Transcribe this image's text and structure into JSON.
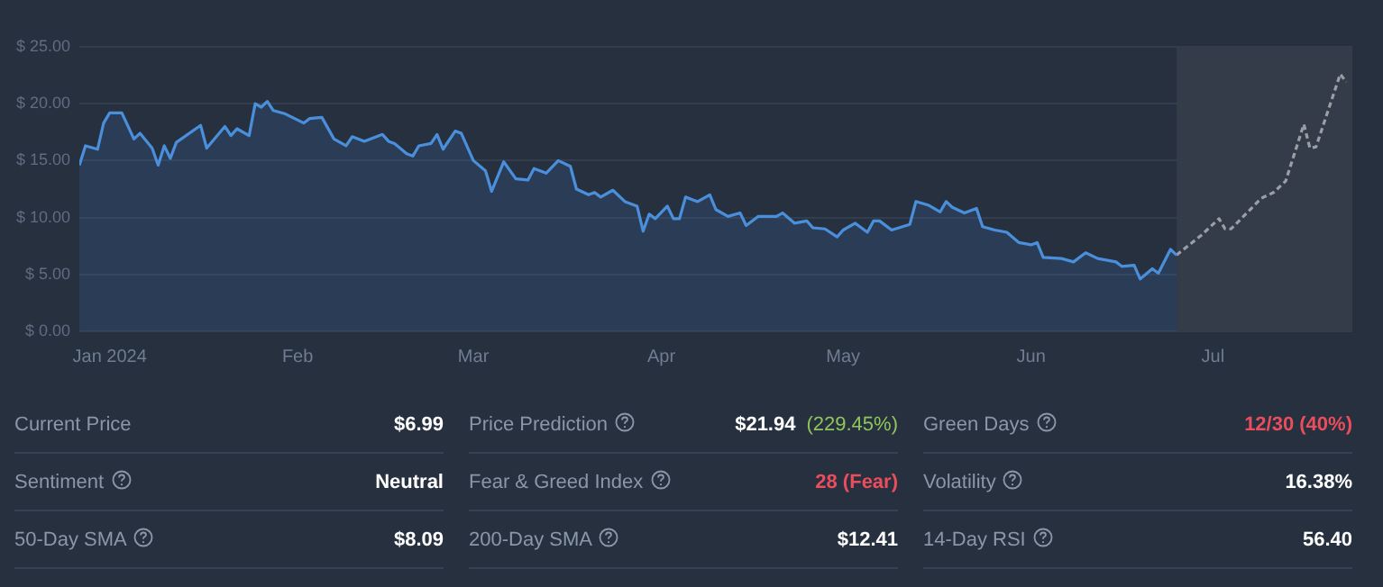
{
  "chart_data": [
    {
      "type": "line",
      "xlim": [
        "2023-12-27",
        "2024-07-24"
      ],
      "xticks": [
        {
          "value": "2024-01-01",
          "label": "Jan 2024"
        },
        {
          "value": "2024-02-01",
          "label": "Feb"
        },
        {
          "value": "2024-03-01",
          "label": "Mar"
        },
        {
          "value": "2024-04-01",
          "label": "Apr"
        },
        {
          "value": "2024-05-01",
          "label": "May"
        },
        {
          "value": "2024-06-01",
          "label": "Jun"
        },
        {
          "value": "2024-07-01",
          "label": "Jul"
        }
      ],
      "ylim": [
        0,
        25
      ],
      "yticks": [
        {
          "value": 0,
          "label": "$ 0.00"
        },
        {
          "value": 5,
          "label": "$ 5.00"
        },
        {
          "value": 10,
          "label": "$ 10.00"
        },
        {
          "value": 15,
          "label": "$ 15.00"
        },
        {
          "value": 20,
          "label": "$ 20.00"
        },
        {
          "value": 25,
          "label": "$ 25.00"
        }
      ],
      "grid": "y",
      "legend": false,
      "marker": "none",
      "series": [
        {
          "type": "area",
          "color": "#4a8fdc",
          "line_style": "solid",
          "x": [
            "2023-12-27",
            "2023-12-28",
            "2023-12-30",
            "2023-12-31",
            "2024-01-01",
            "2024-01-03",
            "2024-01-05",
            "2024-01-06",
            "2024-01-08",
            "2024-01-09",
            "2024-01-10",
            "2024-01-11",
            "2024-01-12",
            "2024-01-16",
            "2024-01-17",
            "2024-01-20",
            "2024-01-21",
            "2024-01-22",
            "2024-01-24",
            "2024-01-25",
            "2024-01-26",
            "2024-01-27",
            "2024-01-28",
            "2024-01-30",
            "2024-02-02",
            "2024-02-03",
            "2024-02-05",
            "2024-02-07",
            "2024-02-09",
            "2024-02-10",
            "2024-02-12",
            "2024-02-15",
            "2024-02-16",
            "2024-02-17",
            "2024-02-19",
            "2024-02-20",
            "2024-02-21",
            "2024-02-23",
            "2024-02-24",
            "2024-02-25",
            "2024-02-27",
            "2024-02-28",
            "2024-03-01",
            "2024-03-03",
            "2024-03-04",
            "2024-03-05",
            "2024-03-06",
            "2024-03-08",
            "2024-03-10",
            "2024-03-11",
            "2024-03-13",
            "2024-03-15",
            "2024-03-17",
            "2024-03-18",
            "2024-03-20",
            "2024-03-21",
            "2024-03-22",
            "2024-03-24",
            "2024-03-26",
            "2024-03-28",
            "2024-03-29",
            "2024-03-30",
            "2024-03-31",
            "2024-04-02",
            "2024-04-03",
            "2024-04-04",
            "2024-04-05",
            "2024-04-07",
            "2024-04-09",
            "2024-04-10",
            "2024-04-12",
            "2024-04-14",
            "2024-04-15",
            "2024-04-17",
            "2024-04-20",
            "2024-04-21",
            "2024-04-23",
            "2024-04-25",
            "2024-04-26",
            "2024-04-28",
            "2024-04-30",
            "2024-05-01",
            "2024-05-03",
            "2024-05-05",
            "2024-05-06",
            "2024-05-07",
            "2024-05-09",
            "2024-05-12",
            "2024-05-13",
            "2024-05-15",
            "2024-05-17",
            "2024-05-18",
            "2024-05-19",
            "2024-05-21",
            "2024-05-23",
            "2024-05-24",
            "2024-05-26",
            "2024-05-28",
            "2024-05-30",
            "2024-06-01",
            "2024-06-02",
            "2024-06-03",
            "2024-06-06",
            "2024-06-08",
            "2024-06-10",
            "2024-06-12",
            "2024-06-15",
            "2024-06-16",
            "2024-06-18",
            "2024-06-19",
            "2024-06-21",
            "2024-06-22",
            "2024-06-24",
            "2024-06-25"
          ],
          "values": [
            14.6,
            16.3,
            16.0,
            18.3,
            19.2,
            19.2,
            16.9,
            17.4,
            16.1,
            14.6,
            16.3,
            15.2,
            16.6,
            18.1,
            16.1,
            18.0,
            17.2,
            17.8,
            17.2,
            20.0,
            19.7,
            20.2,
            19.4,
            19.1,
            18.3,
            18.7,
            18.8,
            16.9,
            16.3,
            17.1,
            16.7,
            17.3,
            16.7,
            16.5,
            15.6,
            15.4,
            16.3,
            16.5,
            17.3,
            16.0,
            17.6,
            17.4,
            15.0,
            14.1,
            12.3,
            13.6,
            14.9,
            13.4,
            13.3,
            14.3,
            13.9,
            15.0,
            14.5,
            12.5,
            12.0,
            12.2,
            11.8,
            12.4,
            11.4,
            11.0,
            8.8,
            10.3,
            9.9,
            11.0,
            9.9,
            9.9,
            11.8,
            11.4,
            12.0,
            10.7,
            10.1,
            10.4,
            9.3,
            10.1,
            10.1,
            10.4,
            9.5,
            9.7,
            9.1,
            9.0,
            8.3,
            8.9,
            9.5,
            8.7,
            9.7,
            9.7,
            8.9,
            9.4,
            11.4,
            11.1,
            10.5,
            11.4,
            10.9,
            10.4,
            10.8,
            9.2,
            8.9,
            8.7,
            7.8,
            7.6,
            7.8,
            6.5,
            6.4,
            6.1,
            6.9,
            6.4,
            6.1,
            5.7,
            5.8,
            4.6,
            5.5,
            5.1,
            7.2,
            6.7
          ]
        },
        {
          "type": "line",
          "color": "#9a9fa6",
          "line_style": "dashed",
          "x": [
            "2024-06-25",
            "2024-06-29",
            "2024-07-02",
            "2024-07-03",
            "2024-07-04",
            "2024-07-09",
            "2024-07-11",
            "2024-07-13",
            "2024-07-16",
            "2024-07-17",
            "2024-07-18",
            "2024-07-22",
            "2024-07-23"
          ],
          "values": [
            6.7,
            8.4,
            9.9,
            9.0,
            9.0,
            11.7,
            12.2,
            13.2,
            18.2,
            16.1,
            16.2,
            22.6,
            21.9
          ]
        }
      ],
      "bands": [
        {
          "axis": "x",
          "from": "2024-06-25",
          "to": "2024-07-24",
          "color": "#343c49"
        }
      ]
    },
    {
      "type": "other",
      "annotations": [
        "Current Price",
        "$6.99",
        "Price Prediction",
        "$21.94",
        "(229.45%)",
        "Green Days",
        "12/30 (40%)",
        "Sentiment",
        "Neutral",
        "Fear & Greed Index",
        "28 (Fear)",
        "Volatility",
        "16.38%",
        "50-Day SMA",
        "$8.09",
        "200-Day SMA",
        "$12.41",
        "14-Day RSI",
        "56.40"
      ],
      "colors": [
        "#8b97a8",
        "#ffffff",
        "#8b97a8",
        "#ffffff",
        "#8fc55a",
        "#8b97a8",
        "#ea4d5c",
        "#8b97a8",
        "#ffffff",
        "#8b97a8",
        "#ea4d5c",
        "#8b97a8",
        "#ffffff",
        "#8b97a8",
        "#ffffff",
        "#8b97a8",
        "#ffffff",
        "#8b97a8",
        "#ffffff"
      ]
    }
  ]
}
